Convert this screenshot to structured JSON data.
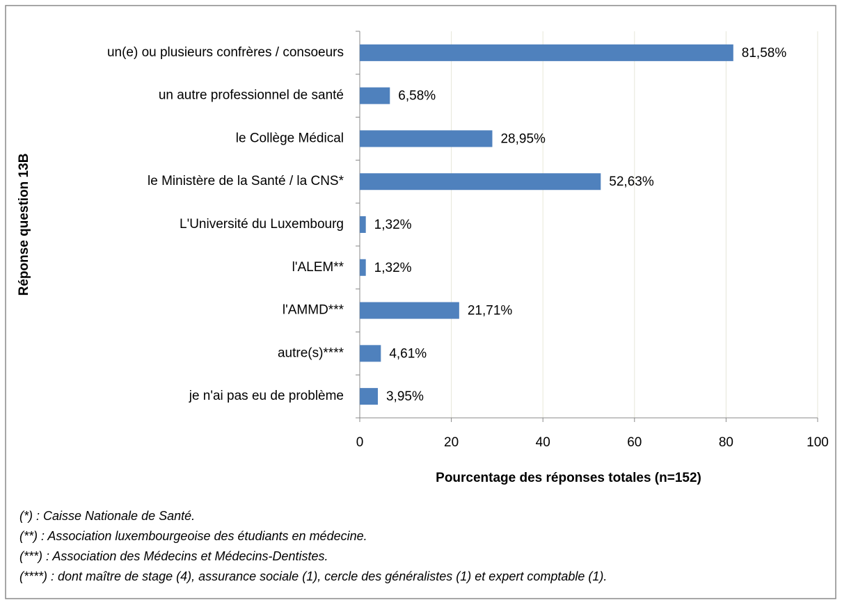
{
  "chart_data": {
    "type": "hbar",
    "categories": [
      "un(e) ou plusieurs confrères / consoeurs",
      "un autre professionnel de santé",
      "le Collège Médical",
      "le Ministère de la Santé / la CNS*",
      "L'Université du Luxembourg",
      "l'ALEM**",
      "l'AMMD***",
      "autre(s)****",
      "je n'ai pas eu de problème"
    ],
    "values": [
      81.58,
      6.58,
      28.95,
      52.63,
      1.32,
      1.32,
      21.71,
      4.61,
      3.95
    ],
    "value_labels": [
      "81,58%",
      "6,58%",
      "28,95%",
      "52,63%",
      "1,32%",
      "1,32%",
      "21,71%",
      "4,61%",
      "3,95%"
    ],
    "color": "#4f81bd",
    "xlim": [
      0,
      100
    ],
    "xticks": [
      0,
      20,
      40,
      60,
      80,
      100
    ],
    "grid": true,
    "xlabel": "Pourcentage des réponses totales (n=152)",
    "ylabel": "Réponse question 13B",
    "footnotes": [
      "(*) : Caisse Nationale de Santé.",
      "(**) : Association luxembourgeoise des étudiants en médecine.",
      "(***) : Association des Médecins et Médecins-Dentistes.",
      "(****) : dont maître de stage (4), assurance sociale (1), cercle des généralistes (1) et expert comptable (1)."
    ]
  }
}
